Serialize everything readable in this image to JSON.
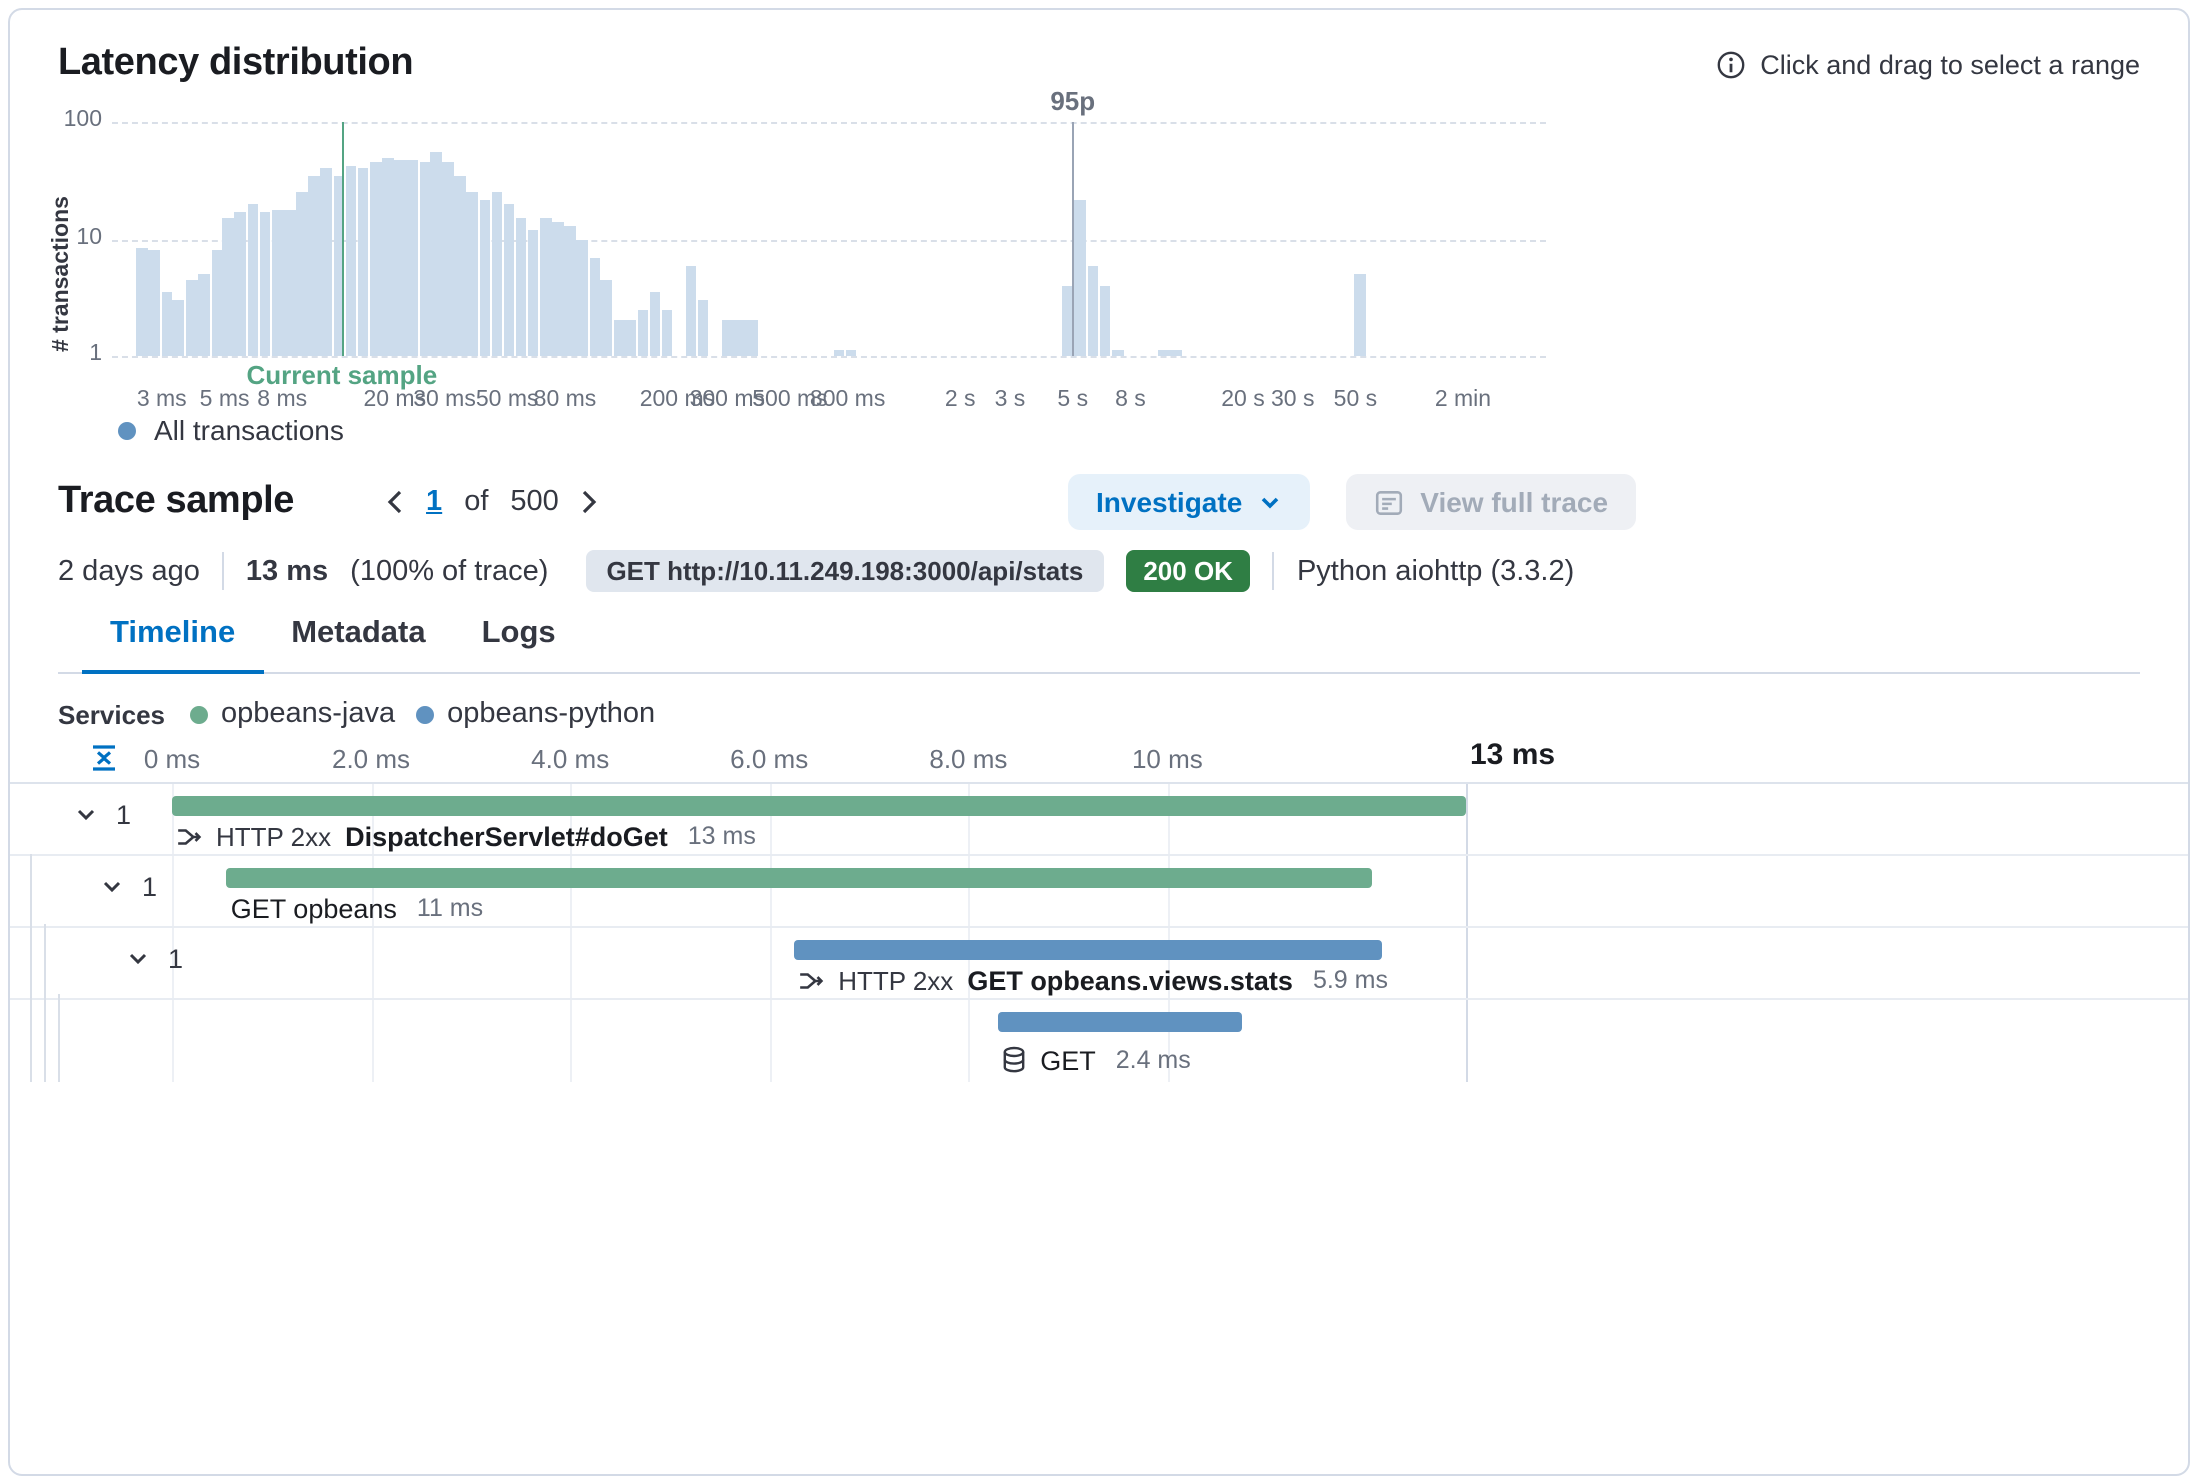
{
  "panel": {
    "latency_title": "Latency distribution",
    "range_hint": "Click and drag to select a range"
  },
  "chart_data": {
    "type": "bar",
    "title": "Latency distribution",
    "ylabel": "# transactions",
    "yscale": "log",
    "ylim": [
      1,
      100
    ],
    "yticks": [
      "100",
      "10",
      "1"
    ],
    "xscale": "log",
    "x_unit": "ms",
    "xlim_ms": [
      2.0,
      236000
    ],
    "grid": "horizontal-dashed",
    "xticks": [
      {
        "label": "3 ms",
        "ms": 3
      },
      {
        "label": "5 ms",
        "ms": 5
      },
      {
        "label": "8 ms",
        "ms": 8
      },
      {
        "label": "20 ms",
        "ms": 20
      },
      {
        "label": "30 ms",
        "ms": 30
      },
      {
        "label": "50 ms",
        "ms": 50
      },
      {
        "label": "80 ms",
        "ms": 80
      },
      {
        "label": "200 ms",
        "ms": 200
      },
      {
        "label": "300 ms",
        "ms": 300
      },
      {
        "label": "500 ms",
        "ms": 500
      },
      {
        "label": "800 ms",
        "ms": 800
      },
      {
        "label": "2 s",
        "ms": 2000
      },
      {
        "label": "3 s",
        "ms": 3000
      },
      {
        "label": "5 s",
        "ms": 5000
      },
      {
        "label": "8 s",
        "ms": 8000
      },
      {
        "label": "20 s",
        "ms": 20000
      },
      {
        "label": "30 s",
        "ms": 30000
      },
      {
        "label": "50 s",
        "ms": 50000
      },
      {
        "label": "2 min",
        "ms": 120000
      }
    ],
    "bars_ms_count": [
      [
        2.55,
        8.5
      ],
      [
        2.83,
        8
      ],
      [
        3.12,
        3.5
      ],
      [
        3.44,
        3
      ],
      [
        3.82,
        4.5
      ],
      [
        4.22,
        5
      ],
      [
        4.69,
        8
      ],
      [
        5.16,
        15
      ],
      [
        5.69,
        17
      ],
      [
        6.32,
        20
      ],
      [
        6.97,
        17
      ],
      [
        7.75,
        18
      ],
      [
        8.53,
        18
      ],
      [
        9.4,
        25
      ],
      [
        10.4,
        35
      ],
      [
        11.4,
        40
      ],
      [
        12.7,
        35
      ],
      [
        14,
        42
      ],
      [
        15.4,
        40
      ],
      [
        17.1,
        45
      ],
      [
        18.9,
        50
      ],
      [
        20.8,
        48
      ],
      [
        23,
        48
      ],
      [
        25.5,
        45
      ],
      [
        28.1,
        55
      ],
      [
        31,
        45
      ],
      [
        34.1,
        35
      ],
      [
        37.6,
        25
      ],
      [
        41.8,
        22
      ],
      [
        46.1,
        25
      ],
      [
        50.8,
        20
      ],
      [
        56,
        15
      ],
      [
        61.7,
        12
      ],
      [
        68.6,
        15
      ],
      [
        75.5,
        14
      ],
      [
        83.4,
        13
      ],
      [
        91.8,
        10
      ],
      [
        102,
        7
      ],
      [
        112,
        4.5
      ],
      [
        124,
        2
      ],
      [
        136,
        2
      ],
      [
        151,
        2.5
      ],
      [
        167,
        3.5
      ],
      [
        184,
        2.5
      ],
      [
        224,
        6
      ],
      [
        247,
        3
      ],
      [
        302,
        2
      ],
      [
        333,
        2
      ],
      [
        367,
        2
      ],
      [
        743,
        1
      ],
      [
        820,
        1
      ],
      [
        4800,
        4
      ],
      [
        5300,
        22
      ],
      [
        5900,
        6
      ],
      [
        6500,
        4
      ],
      [
        7200,
        1
      ],
      [
        10500,
        1
      ],
      [
        11600,
        1
      ],
      [
        52000,
        5
      ]
    ],
    "markers": {
      "current_sample_ms": 13,
      "current_sample_label": "Current sample",
      "p95_ms": 5000,
      "p95_label": "95p"
    },
    "legend": {
      "label": "All transactions",
      "color": "#6092c0"
    }
  },
  "trace": {
    "title": "Trace sample",
    "pager": {
      "current": "1",
      "of": "of",
      "total": "500"
    },
    "investigate_button": "Investigate",
    "view_full_trace_button": "View full trace",
    "summary": {
      "age": "2 days ago",
      "duration": "13 ms",
      "duration_pct": "(100% of trace)",
      "request_badge": "GET http://10.11.249.198:3000/api/stats",
      "status_badge": "200 OK",
      "agent": "Python aiohttp (3.3.2)"
    },
    "tabs": [
      {
        "label": "Timeline",
        "active": true
      },
      {
        "label": "Metadata",
        "active": false
      },
      {
        "label": "Logs",
        "active": false
      }
    ]
  },
  "waterfall": {
    "services_label": "Services",
    "service_legend": [
      {
        "name": "opbeans-java",
        "color": "#6dac8e"
      },
      {
        "name": "opbeans-python",
        "color": "#6092c0"
      }
    ],
    "total_ms": 13,
    "end_label": "13 ms",
    "axis_ticks": [
      {
        "label": "0 ms",
        "ms": 0
      },
      {
        "label": "2.0 ms",
        "ms": 2
      },
      {
        "label": "4.0 ms",
        "ms": 4
      },
      {
        "label": "6.0 ms",
        "ms": 6
      },
      {
        "label": "8.0 ms",
        "ms": 8
      },
      {
        "label": "10 ms",
        "ms": 10
      }
    ],
    "rows": [
      {
        "badge": "1",
        "depth": 0,
        "service": "opbeans-java",
        "type": "http",
        "prefix": "HTTP 2xx",
        "name": "DispatcherServlet#doGet",
        "duration_label": "13 ms",
        "start_ms": 0,
        "duration_ms": 13
      },
      {
        "badge": "1",
        "depth": 1,
        "service": "opbeans-java",
        "type": null,
        "prefix": null,
        "name": "GET opbeans",
        "duration_label": "11 ms",
        "start_ms": 0.55,
        "duration_ms": 11.5
      },
      {
        "badge": "1",
        "depth": 2,
        "service": "opbeans-python",
        "type": "http",
        "prefix": "HTTP 2xx",
        "name": "GET opbeans.views.stats",
        "duration_label": "5.9 ms",
        "start_ms": 6.25,
        "duration_ms": 5.9
      },
      {
        "badge": null,
        "depth": 3,
        "service": "opbeans-python",
        "type": "db",
        "prefix": null,
        "name": "GET",
        "duration_label": "2.4 ms",
        "start_ms": 8.3,
        "duration_ms": 2.45
      }
    ]
  },
  "colors": {
    "primary_blue": "#0071c2",
    "histogram_bar": "#ccdcec",
    "current_sample_green": "#54a483",
    "p95_gray": "#9aa4b5",
    "java_green": "#6dac8e",
    "python_blue": "#6092c0",
    "status_green": "#2f7e44",
    "panel_border": "#d3dae6"
  }
}
